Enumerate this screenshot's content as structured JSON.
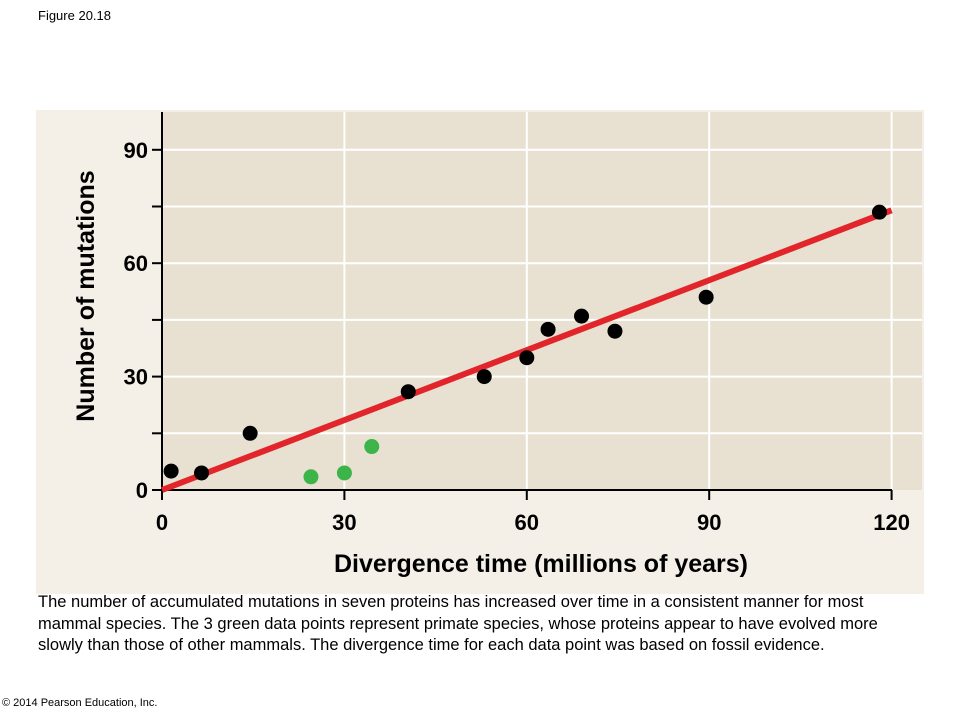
{
  "figure_label": "Figure 20.18",
  "caption": "The number of accumulated mutations in seven proteins has increased over time in a consistent manner for most mammal species.  The 3 green data points represent primate species, whose proteins appear to have evolved more slowly than those of other mammals.  The divergence time for each data point was based on fossil evidence.",
  "copyright": "© 2014 Pearson Education, Inc.",
  "colors": {
    "plot_background": "#e8e1d2",
    "panel_background": "#f4f0e8",
    "black_points": "#000000",
    "green_points": "#3cb44a",
    "trend_line": "#e2242b",
    "grid": "#ffffff"
  },
  "chart_data": {
    "type": "scatter",
    "xlabel": "Divergence time (millions of years)",
    "ylabel": "Number of mutations",
    "xlim": [
      0,
      125
    ],
    "ylim": [
      0,
      100
    ],
    "x_ticks": [
      0,
      30,
      60,
      90,
      120
    ],
    "x_tick_labels": [
      "0",
      "30",
      "60",
      "90",
      "120"
    ],
    "y_ticks": [
      0,
      30,
      60,
      90
    ],
    "y_tick_labels": [
      "0",
      "30",
      "60",
      "90"
    ],
    "grid": true,
    "series": [
      {
        "color": "#000000",
        "points": [
          {
            "x": 1.5,
            "y": 5
          },
          {
            "x": 6.5,
            "y": 4.5
          },
          {
            "x": 14.5,
            "y": 15
          },
          {
            "x": 40.5,
            "y": 26
          },
          {
            "x": 53,
            "y": 30
          },
          {
            "x": 60,
            "y": 35
          },
          {
            "x": 63.5,
            "y": 42.5
          },
          {
            "x": 69,
            "y": 46
          },
          {
            "x": 74.5,
            "y": 42
          },
          {
            "x": 89.5,
            "y": 51
          },
          {
            "x": 118,
            "y": 73.5
          }
        ]
      },
      {
        "color": "#3cb44a",
        "points": [
          {
            "x": 24.5,
            "y": 3.5
          },
          {
            "x": 30,
            "y": 4.5
          },
          {
            "x": 34.5,
            "y": 11.5
          }
        ]
      }
    ],
    "trend_line": {
      "color": "#e2242b",
      "x": [
        0,
        120
      ],
      "y": [
        0,
        74
      ]
    }
  }
}
